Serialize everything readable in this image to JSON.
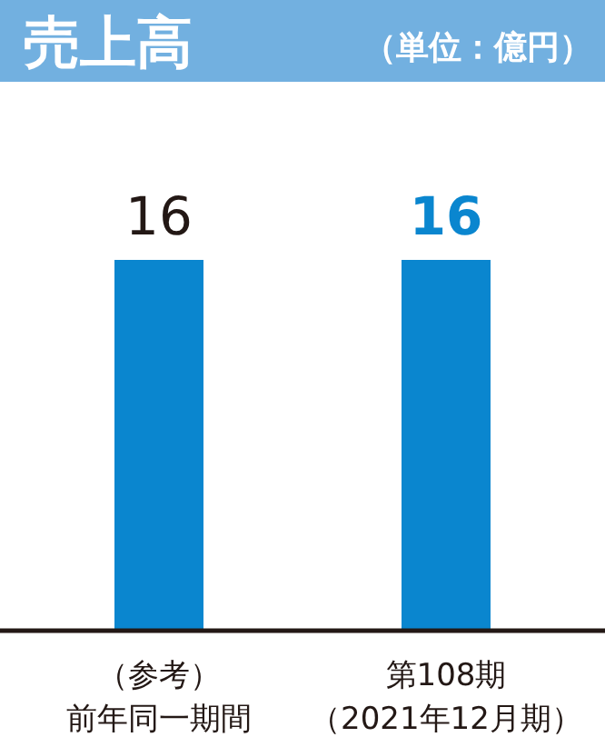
{
  "chart_data": {
    "type": "bar",
    "title": "売上高",
    "subtitle": "（単位：億円）",
    "categories": [
      "（参考）前年同一期間",
      "第108期（2021年12月期）"
    ],
    "values": [
      16,
      16
    ],
    "color": "#0a86cf",
    "data_labels": true
  }
}
